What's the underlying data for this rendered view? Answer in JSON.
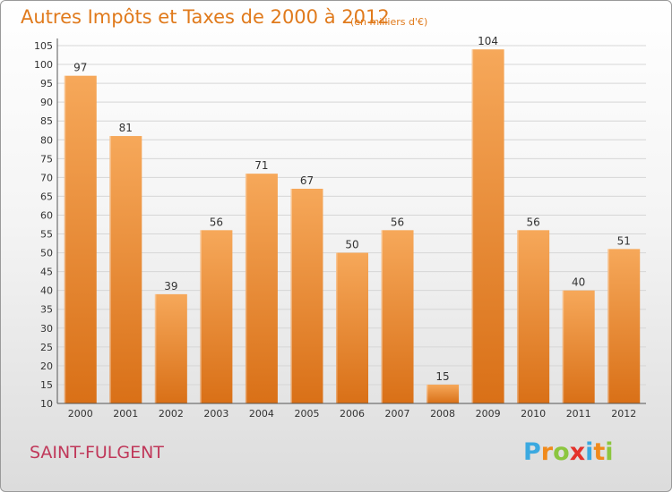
{
  "header": {
    "title": "Autres Impôts et Taxes de 2000 à 2012",
    "subtitle": "(en milliers d'€)"
  },
  "footer": {
    "commune": "SAINT-FULGENT",
    "brand": "Proxiti"
  },
  "colors": {
    "title": "#e07a1c",
    "commune": "#c0385a",
    "bar_light": "#f6a85a",
    "bar_dark": "#d97017"
  },
  "chart_data": {
    "type": "bar",
    "title": "Autres Impôts et Taxes de 2000 à 2012",
    "subtitle": "(en milliers d'€)",
    "categories": [
      "2000",
      "2001",
      "2002",
      "2003",
      "2004",
      "2005",
      "2006",
      "2007",
      "2008",
      "2009",
      "2010",
      "2011",
      "2012"
    ],
    "values": [
      97,
      81,
      39,
      56,
      71,
      67,
      50,
      56,
      15,
      104,
      56,
      40,
      51
    ],
    "ylim": [
      10,
      105
    ],
    "yticks": [
      10,
      15,
      20,
      25,
      30,
      35,
      40,
      45,
      50,
      55,
      60,
      65,
      70,
      75,
      80,
      85,
      90,
      95,
      100,
      105
    ],
    "grid": true
  }
}
